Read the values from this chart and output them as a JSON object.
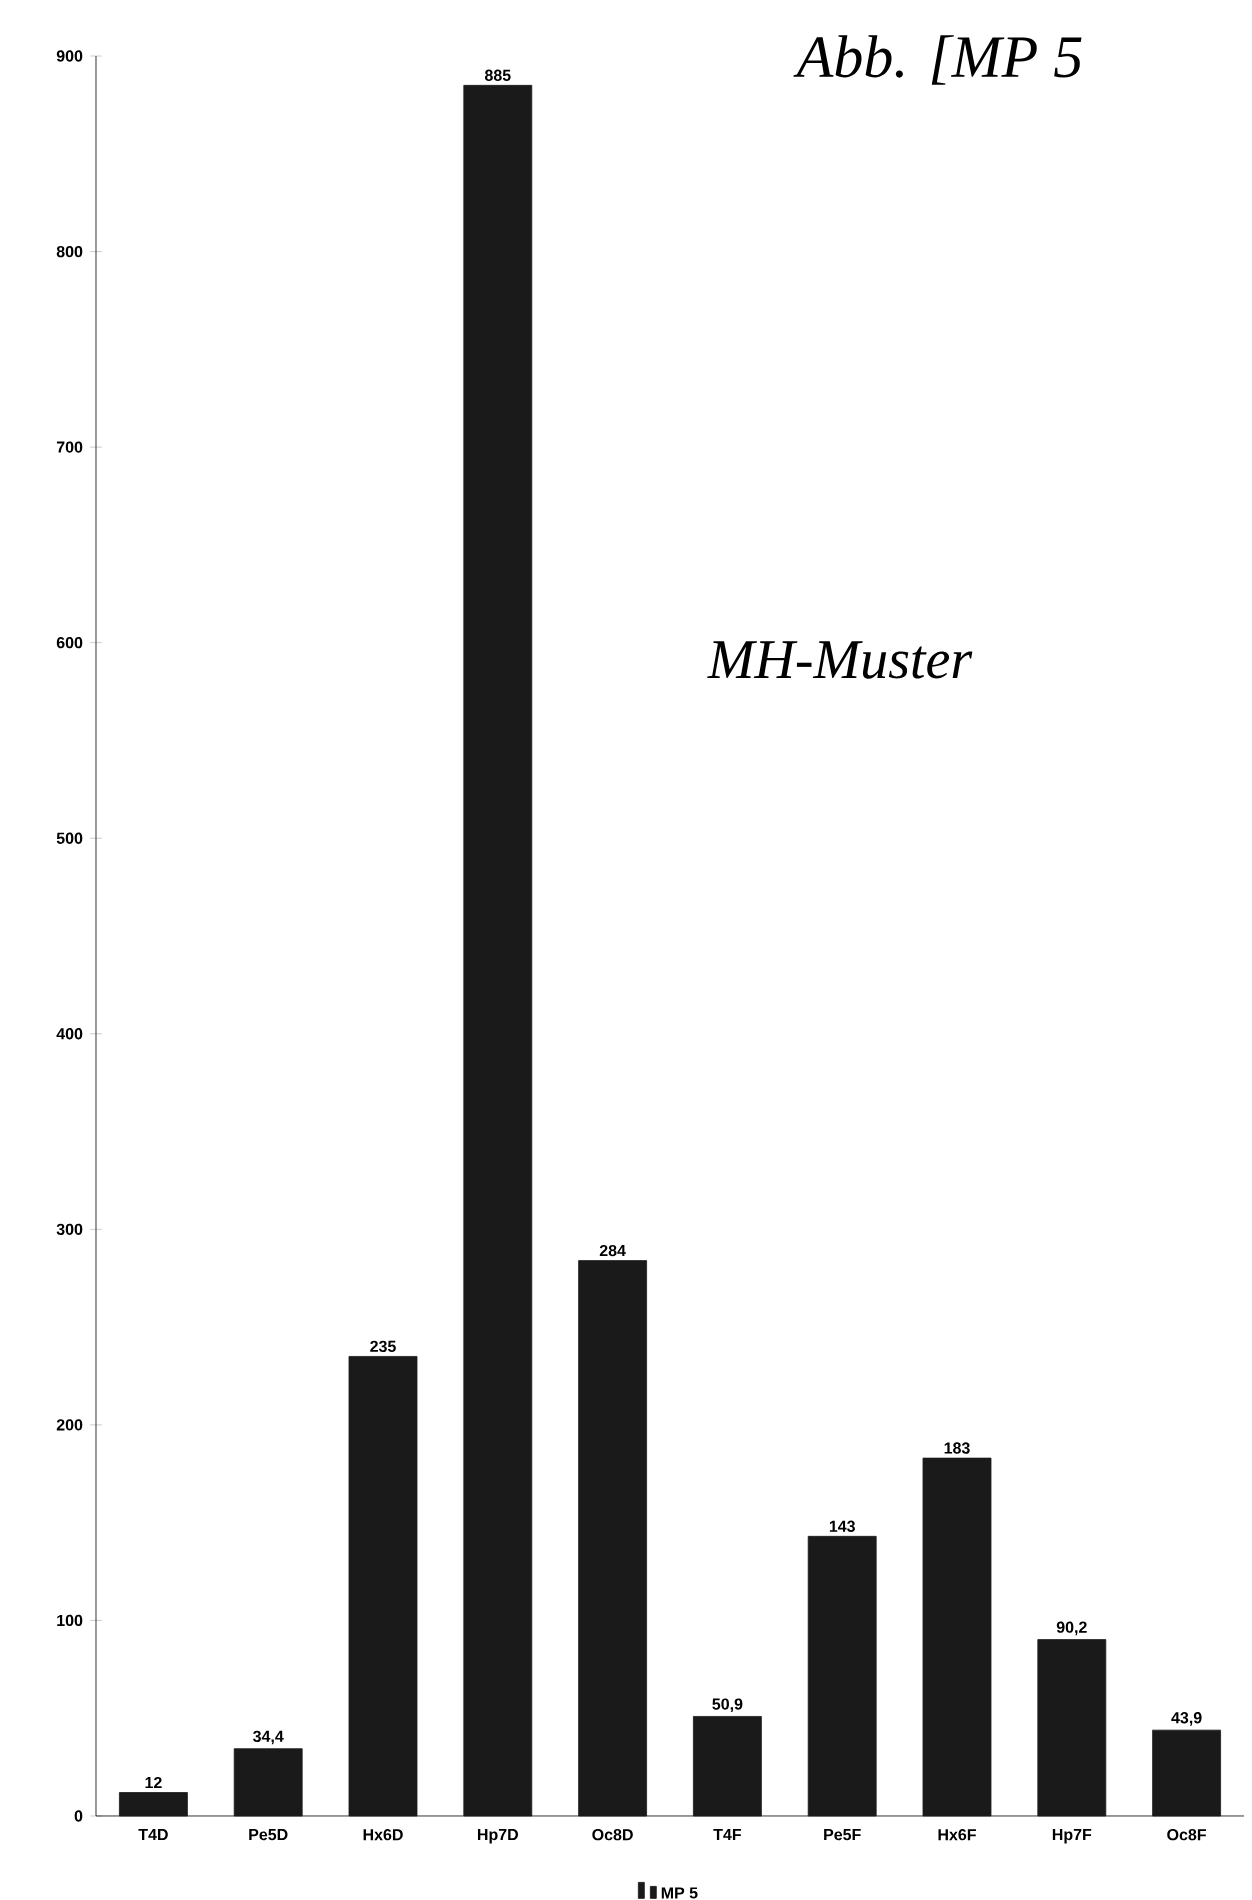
{
  "chart_data": {
    "type": "bar",
    "categories": [
      "T4D",
      "Pe5D",
      "Hx6D",
      "Hp7D",
      "Oc8D",
      "T4F",
      "Pe5F",
      "Hx6F",
      "Hp7F",
      "Oc8F"
    ],
    "series": [
      {
        "name": "MP 5",
        "color": "#1a1a1a",
        "values": [
          12,
          34.4,
          235,
          885,
          284,
          50.9,
          143,
          183,
          90.2,
          43.9
        ],
        "value_labels": [
          "12",
          "34,4",
          "235",
          "885",
          "284",
          "50,9",
          "143",
          "183",
          "90,2",
          "43,9"
        ]
      }
    ],
    "ylim": [
      0,
      900
    ],
    "yticks": [
      0,
      100,
      200,
      300,
      400,
      500,
      600,
      700,
      800,
      900
    ],
    "grid": false,
    "legend": "bottom",
    "annotations": [
      "Abb. [MP 5",
      "MH-Muster"
    ]
  }
}
